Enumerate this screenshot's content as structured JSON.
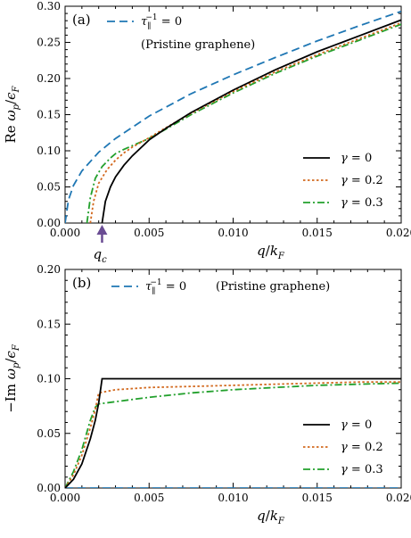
{
  "chart_data": [
    {
      "type": "line",
      "panel_label": "(a)",
      "xlabel": "q/k_F",
      "ylabel": "Re ω_p/ϵ_F",
      "xlim": [
        0.0,
        0.02
      ],
      "ylim": [
        0.0,
        0.3
      ],
      "xticks": [
        "0.000",
        "0.005",
        "0.010",
        "0.015",
        "0.020"
      ],
      "yticks": [
        "0.00",
        "0.05",
        "0.10",
        "0.15",
        "0.20",
        "0.25",
        "0.30"
      ],
      "annotation": "q_c",
      "annotation_x": 0.0022,
      "legend_top": {
        "label": "τ_∥⁻¹ = 0",
        "note": "(Pristine graphene)"
      },
      "legend_bottom": [
        "γ = 0",
        "γ = 0.2",
        "γ = 0.3"
      ],
      "series": [
        {
          "key": "pristine",
          "color": "#1f77b4",
          "style": "dashed",
          "x": [
            0.0,
            0.0002,
            0.0005,
            0.001,
            0.002,
            0.003,
            0.005,
            0.0075,
            0.01,
            0.0125,
            0.015,
            0.0175,
            0.02
          ],
          "y": [
            0.0,
            0.032,
            0.052,
            0.072,
            0.098,
            0.117,
            0.148,
            0.179,
            0.205,
            0.229,
            0.252,
            0.273,
            0.293
          ]
        },
        {
          "key": "g0",
          "color": "#000000",
          "style": "solid",
          "x": [
            0.0022,
            0.0024,
            0.0027,
            0.003,
            0.0035,
            0.004,
            0.005,
            0.006,
            0.0075,
            0.01,
            0.0125,
            0.015,
            0.0175,
            0.02
          ],
          "y": [
            0.0,
            0.03,
            0.05,
            0.064,
            0.08,
            0.093,
            0.115,
            0.131,
            0.153,
            0.184,
            0.212,
            0.237,
            0.259,
            0.281
          ]
        },
        {
          "key": "g02",
          "color": "#d2691e",
          "style": "dotted",
          "x": [
            0.0015,
            0.0017,
            0.002,
            0.0025,
            0.003,
            0.0035,
            0.004,
            0.005,
            0.006,
            0.0075,
            0.01,
            0.0125,
            0.015,
            0.0175,
            0.02
          ],
          "y": [
            0.0,
            0.03,
            0.055,
            0.074,
            0.087,
            0.097,
            0.105,
            0.118,
            0.132,
            0.152,
            0.182,
            0.209,
            0.233,
            0.255,
            0.277
          ]
        },
        {
          "key": "g03",
          "color": "#22a02c",
          "style": "dashdot",
          "x": [
            0.0013,
            0.0015,
            0.0018,
            0.0022,
            0.0027,
            0.003,
            0.0035,
            0.004,
            0.005,
            0.006,
            0.0075,
            0.01,
            0.0125,
            0.015,
            0.0175,
            0.02
          ],
          "y": [
            0.0,
            0.035,
            0.062,
            0.078,
            0.09,
            0.096,
            0.102,
            0.107,
            0.117,
            0.13,
            0.15,
            0.18,
            0.207,
            0.231,
            0.253,
            0.275
          ]
        }
      ]
    },
    {
      "type": "line",
      "panel_label": "(b)",
      "xlabel": "q/k_F",
      "ylabel": "−Im ω_p/ϵ_F",
      "xlim": [
        0.0,
        0.02
      ],
      "ylim": [
        0.0,
        0.2
      ],
      "xticks": [
        "0.000",
        "0.005",
        "0.010",
        "0.015",
        "0.020"
      ],
      "yticks": [
        "0.00",
        "0.05",
        "0.10",
        "0.15",
        "0.20"
      ],
      "legend_top": {
        "label": "τ_∥⁻¹ = 0",
        "note": "(Pristine graphene)"
      },
      "legend_bottom": [
        "γ = 0",
        "γ = 0.2",
        "γ = 0.3"
      ],
      "series": [
        {
          "key": "pristine",
          "color": "#1f77b4",
          "style": "dashed",
          "x": [
            0.0,
            0.02
          ],
          "y": [
            0.0,
            0.0
          ]
        },
        {
          "key": "g0",
          "color": "#000000",
          "style": "solid",
          "x": [
            0.0,
            0.0005,
            0.001,
            0.0015,
            0.0018,
            0.002,
            0.0022,
            0.02
          ],
          "y": [
            0.0,
            0.008,
            0.022,
            0.045,
            0.062,
            0.078,
            0.1,
            0.1
          ]
        },
        {
          "key": "g02",
          "color": "#d2691e",
          "style": "dotted",
          "x": [
            0.0,
            0.0005,
            0.001,
            0.0015,
            0.0018,
            0.002,
            0.003,
            0.005,
            0.0075,
            0.01,
            0.0125,
            0.015,
            0.0175,
            0.02
          ],
          "y": [
            0.0,
            0.012,
            0.03,
            0.055,
            0.072,
            0.087,
            0.09,
            0.092,
            0.093,
            0.094,
            0.095,
            0.096,
            0.097,
            0.097
          ]
        },
        {
          "key": "g03",
          "color": "#22a02c",
          "style": "dashdot",
          "x": [
            0.0,
            0.0005,
            0.001,
            0.0015,
            0.0018,
            0.002,
            0.003,
            0.005,
            0.0075,
            0.01,
            0.0125,
            0.015,
            0.0175,
            0.02
          ],
          "y": [
            0.0,
            0.015,
            0.035,
            0.062,
            0.074,
            0.077,
            0.079,
            0.083,
            0.087,
            0.09,
            0.092,
            0.094,
            0.095,
            0.096
          ]
        }
      ]
    }
  ]
}
